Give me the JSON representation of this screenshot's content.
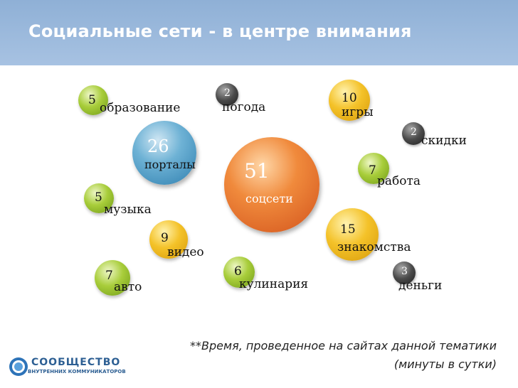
{
  "header": {
    "title": "Социальные сети - в центре внимания"
  },
  "bubbles": [
    {
      "id": "obrazovanie",
      "value": "5",
      "label": "образование"
    },
    {
      "id": "pogoda",
      "value": "2",
      "label": "погода"
    },
    {
      "id": "igry",
      "value": "10",
      "label": "игры"
    },
    {
      "id": "skidki",
      "value": "2",
      "label": "скидки"
    },
    {
      "id": "portaly",
      "value": "26",
      "label": "порталы"
    },
    {
      "id": "sotsseti",
      "value": "51",
      "label": "соцсети"
    },
    {
      "id": "rabota",
      "value": "7",
      "label": "работа"
    },
    {
      "id": "muzyka",
      "value": "5",
      "label": "музыка"
    },
    {
      "id": "znakomstva",
      "value": "15",
      "label": "знакомства"
    },
    {
      "id": "video",
      "value": "9",
      "label": "видео"
    },
    {
      "id": "avto",
      "value": "7",
      "label": "авто"
    },
    {
      "id": "kulinariya",
      "value": "6",
      "label": "кулинария"
    },
    {
      "id": "dengi",
      "value": "3",
      "label": "деньги"
    }
  ],
  "footnote": "**Время, проведенное на сайтах данной тематики (минуты в сутки)",
  "logo": {
    "line1": "СООБЩЕСТВО",
    "line2": "ВНУТРЕННИХ КОММУНИКАТОРОВ"
  },
  "colors": {
    "header": "#a7c2e2",
    "green": "#a8cd3a",
    "yellow": "#f4c229",
    "dark": "#333333",
    "blue": "#4f9ac7",
    "orange": "#e8702e"
  }
}
